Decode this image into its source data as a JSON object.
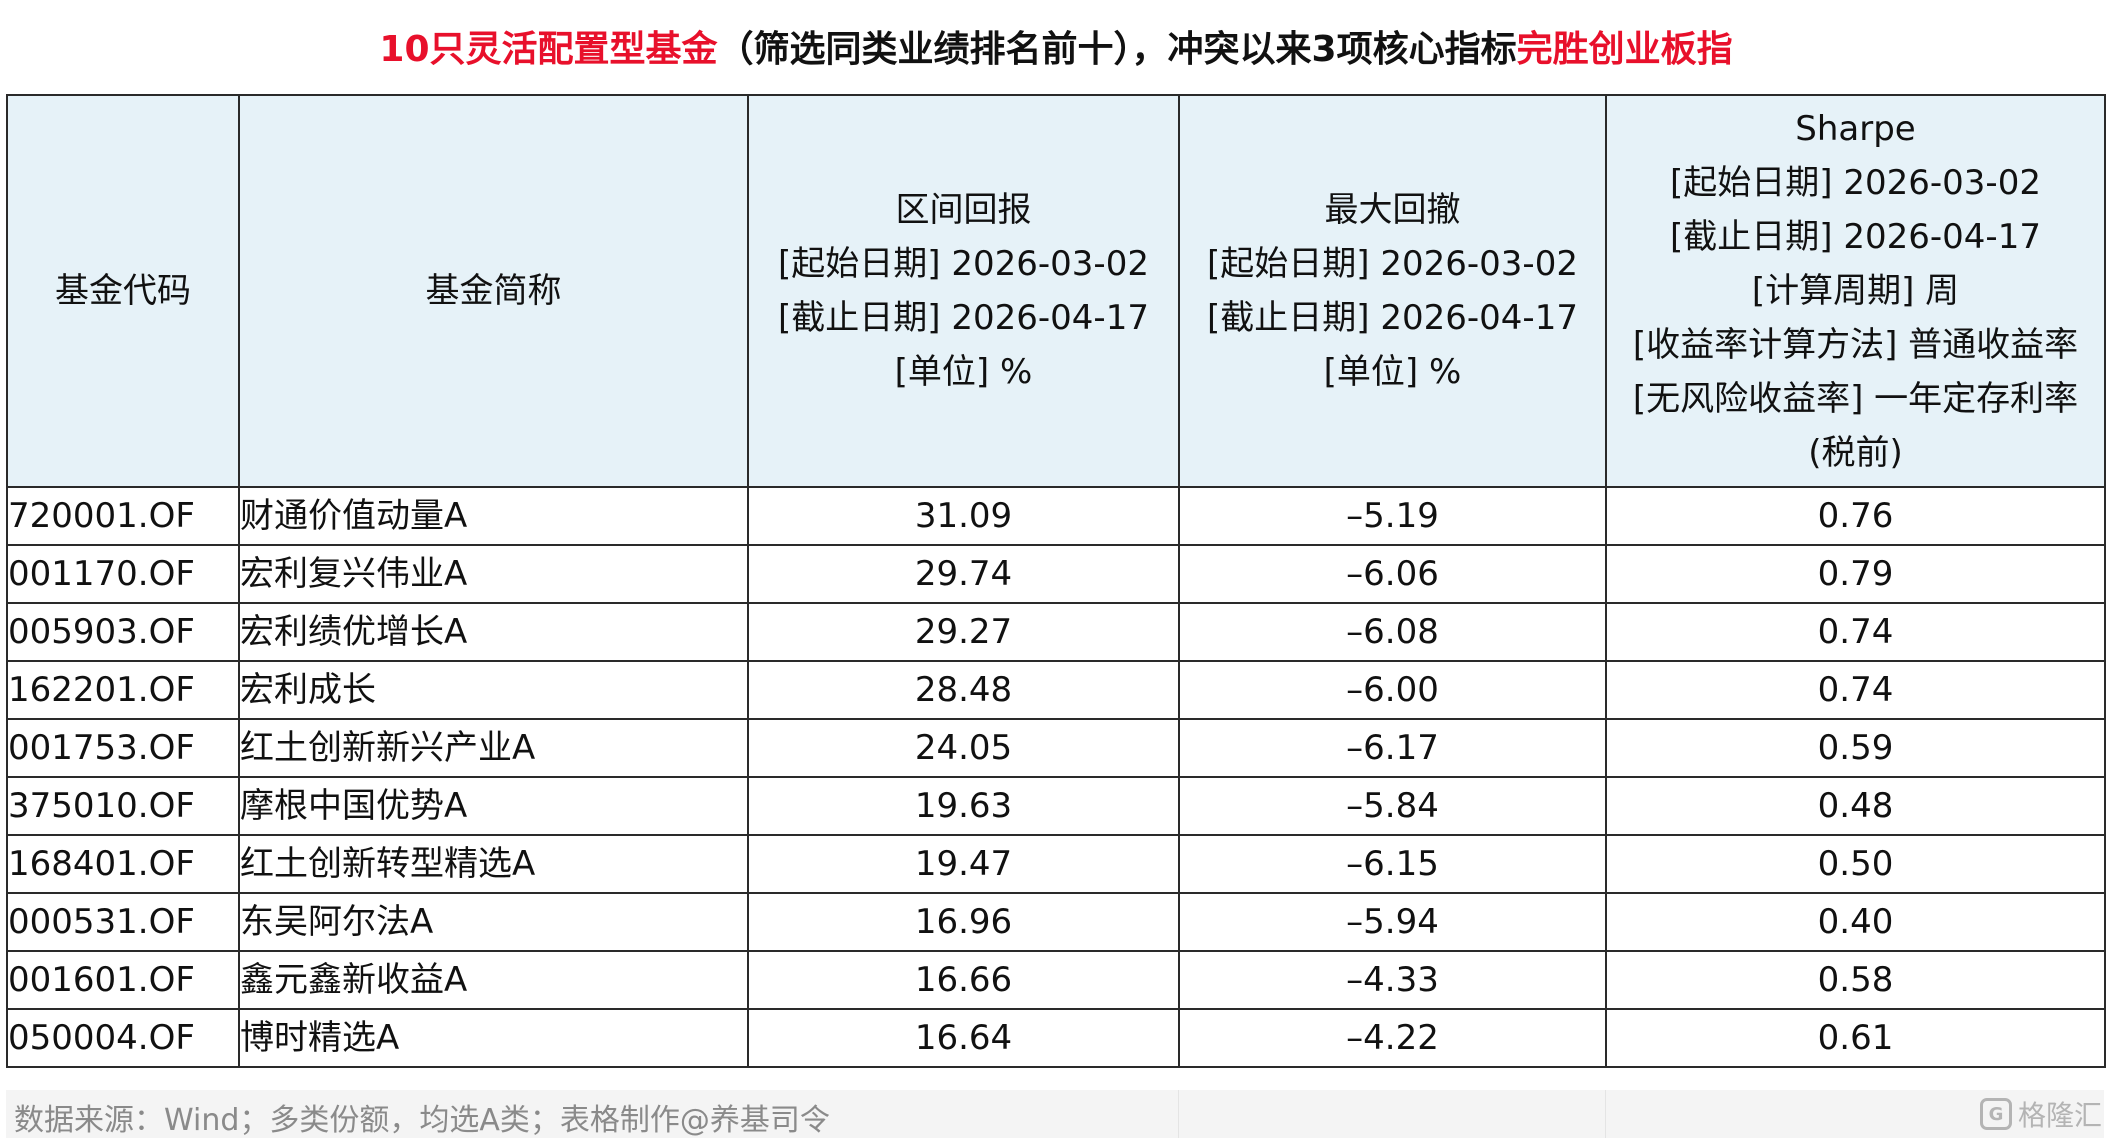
{
  "title": {
    "part1": "10只灵活配置型基金",
    "part2": "（筛选同类业绩排名前十），冲突以来3项核心指标",
    "part3": "完胜创业板指"
  },
  "colors": {
    "highlight": "#e8102b",
    "header_bg": "#e6f2f8",
    "border": "#2a2a2a"
  },
  "table": {
    "headers": {
      "code": "基金代码",
      "name": "基金简称",
      "return": [
        "区间回报",
        "[起始日期] 2026-03-02",
        "[截止日期] 2026-04-17",
        "[单位] %"
      ],
      "drawdown": [
        "最大回撤",
        "[起始日期] 2026-03-02",
        "[截止日期] 2026-04-17",
        "[单位] %"
      ],
      "sharpe": [
        "Sharpe",
        "[起始日期] 2026-03-02",
        "[截止日期] 2026-04-17",
        "[计算周期] 周",
        "[收益率计算方法] 普通收益率",
        "[无风险收益率] 一年定存利率",
        "(税前)"
      ]
    },
    "rows": [
      {
        "code": "720001.OF",
        "name": "财通价值动量A",
        "return": "31.09",
        "drawdown": "–5.19",
        "sharpe": "0.76"
      },
      {
        "code": "001170.OF",
        "name": "宏利复兴伟业A",
        "return": "29.74",
        "drawdown": "–6.06",
        "sharpe": "0.79"
      },
      {
        "code": "005903.OF",
        "name": "宏利绩优增长A",
        "return": "29.27",
        "drawdown": "–6.08",
        "sharpe": "0.74"
      },
      {
        "code": "162201.OF",
        "name": "宏利成长",
        "return": "28.48",
        "drawdown": "–6.00",
        "sharpe": "0.74"
      },
      {
        "code": "001753.OF",
        "name": "红土创新新兴产业A",
        "return": "24.05",
        "drawdown": "–6.17",
        "sharpe": "0.59"
      },
      {
        "code": "375010.OF",
        "name": "摩根中国优势A",
        "return": "19.63",
        "drawdown": "–5.84",
        "sharpe": "0.48"
      },
      {
        "code": "168401.OF",
        "name": "红土创新转型精选A",
        "return": "19.47",
        "drawdown": "–6.15",
        "sharpe": "0.50"
      },
      {
        "code": "000531.OF",
        "name": "东吴阿尔法A",
        "return": "16.96",
        "drawdown": "–5.94",
        "sharpe": "0.40"
      },
      {
        "code": "001601.OF",
        "name": "鑫元鑫新收益A",
        "return": "16.66",
        "drawdown": "–4.33",
        "sharpe": "0.58"
      },
      {
        "code": "050004.OF",
        "name": "博时精选A",
        "return": "16.64",
        "drawdown": "–4.22",
        "sharpe": "0.61"
      }
    ]
  },
  "footer": {
    "source": "数据来源：Wind；多类份额，均选A类；表格制作@养基司令"
  },
  "watermark": {
    "icon": "gelonghui-logo-icon",
    "text": "格隆汇"
  }
}
